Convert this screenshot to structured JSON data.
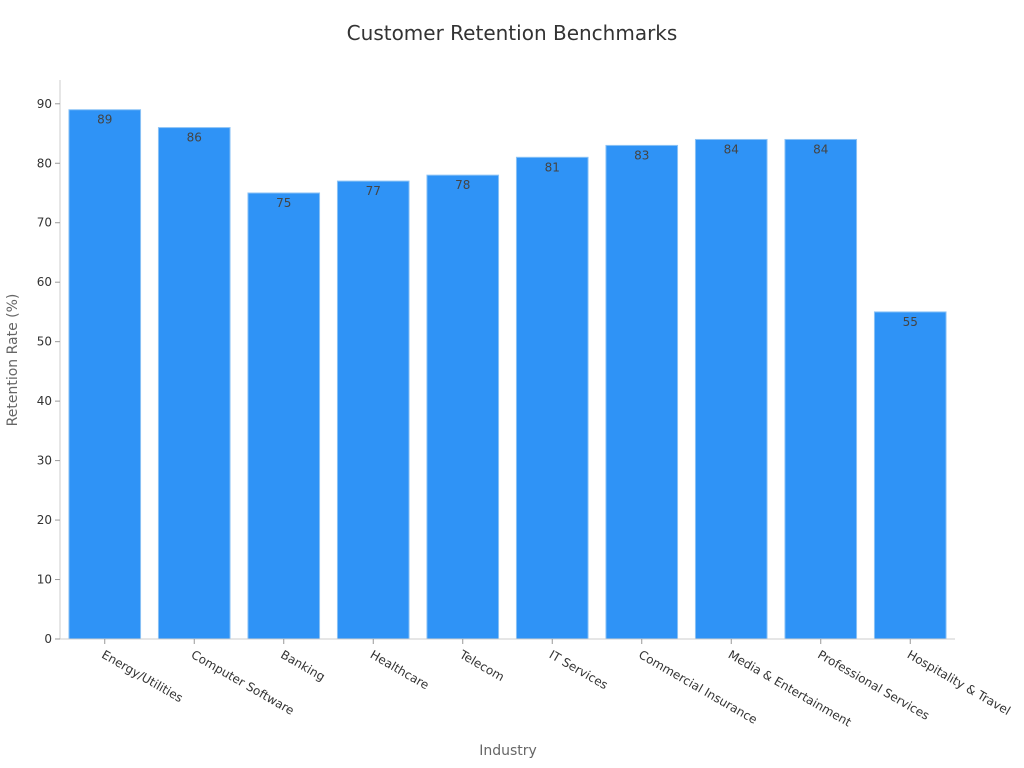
{
  "chart_data": {
    "type": "bar",
    "title": "Customer Retention Benchmarks",
    "xlabel": "Industry",
    "ylabel": "Retention Rate (%)",
    "categories": [
      "Energy/Utilities",
      "Computer Software",
      "Banking",
      "Healthcare",
      "Telecom",
      "IT Services",
      "Commercial Insurance",
      "Media & Entertainment",
      "Professional Services",
      "Hospitality & Travel"
    ],
    "values": [
      89,
      86,
      75,
      77,
      78,
      81,
      83,
      84,
      84,
      55
    ],
    "ylim": [
      0,
      94
    ],
    "yticks": [
      0,
      10,
      20,
      30,
      40,
      50,
      60,
      70,
      80,
      90
    ],
    "grid": false,
    "legend": "none",
    "bar_color": "#2f93f6",
    "bar_edge_color": "#8cc3f5"
  }
}
